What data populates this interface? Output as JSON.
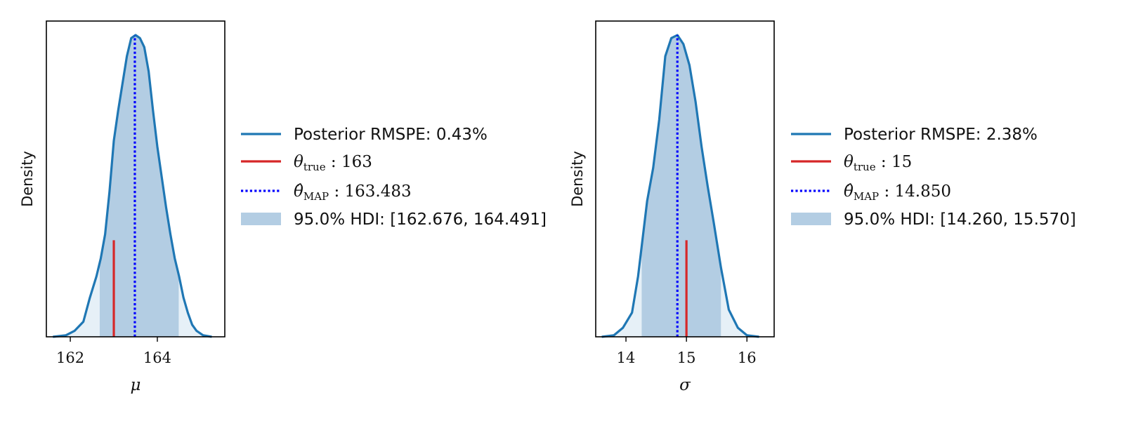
{
  "chart_data": [
    {
      "type": "area",
      "xlabel": "μ",
      "ylabel": "Density",
      "xlim": [
        161.45,
        165.55
      ],
      "xticks": [
        162,
        164
      ],
      "xtick_labels": [
        "162",
        "164"
      ],
      "density_curve": {
        "x": [
          161.6,
          161.9,
          162.1,
          162.3,
          162.45,
          162.6,
          162.7,
          162.8,
          162.9,
          163.0,
          163.1,
          163.2,
          163.3,
          163.4,
          163.5,
          163.6,
          163.7,
          163.8,
          163.9,
          164.0,
          164.1,
          164.2,
          164.3,
          164.4,
          164.5,
          164.6,
          164.7,
          164.8,
          164.9,
          165.05,
          165.25
        ],
        "y": [
          0.0,
          0.005,
          0.02,
          0.05,
          0.13,
          0.2,
          0.26,
          0.34,
          0.48,
          0.65,
          0.75,
          0.84,
          0.93,
          0.99,
          1.0,
          0.99,
          0.96,
          0.88,
          0.75,
          0.63,
          0.53,
          0.43,
          0.34,
          0.26,
          0.2,
          0.13,
          0.08,
          0.04,
          0.02,
          0.005,
          0.0
        ]
      },
      "hdi": [
        162.676,
        164.491
      ],
      "true_value": 163,
      "true_value_line_height": 0.32,
      "map_value": 163.483,
      "legend": {
        "placement": "right",
        "posterior": {
          "text": "Posterior RMSPE: 0.43%"
        },
        "true": {
          "symbol": "θ",
          "sub": "true",
          "text": " : 163"
        },
        "map": {
          "symbol": "θ̂",
          "sub": "MAP",
          "text": " : 163.483"
        },
        "hdi": {
          "text": "95.0% HDI: [162.676, 164.491]"
        }
      }
    },
    {
      "type": "area",
      "xlabel": "σ",
      "ylabel": "Density",
      "xlim": [
        13.5,
        16.45
      ],
      "xticks": [
        14,
        15,
        16
      ],
      "xtick_labels": [
        "14",
        "15",
        "16"
      ],
      "density_curve": {
        "x": [
          13.6,
          13.8,
          13.95,
          14.1,
          14.2,
          14.26,
          14.35,
          14.45,
          14.55,
          14.65,
          14.75,
          14.85,
          14.95,
          15.05,
          15.15,
          15.25,
          15.35,
          15.45,
          15.57,
          15.7,
          15.85,
          16.0,
          16.2
        ],
        "y": [
          0.0,
          0.005,
          0.03,
          0.08,
          0.2,
          0.3,
          0.45,
          0.56,
          0.72,
          0.93,
          0.99,
          1.0,
          0.97,
          0.9,
          0.78,
          0.63,
          0.5,
          0.38,
          0.23,
          0.09,
          0.03,
          0.005,
          0.0
        ]
      },
      "hdi": [
        14.26,
        15.57
      ],
      "true_value": 15,
      "true_value_line_height": 0.32,
      "map_value": 14.85,
      "legend": {
        "placement": "right",
        "posterior": {
          "text": "Posterior RMSPE: 2.38%"
        },
        "true": {
          "symbol": "θ",
          "sub": "true",
          "text": " : 15"
        },
        "map": {
          "symbol": "θ̂",
          "sub": "MAP",
          "text": " : 14.850"
        },
        "hdi": {
          "text": "95.0% HDI: [14.260, 15.570]"
        }
      }
    }
  ],
  "colors": {
    "posterior_line": "#1f77b4",
    "true_line": "#d62728",
    "map_line": "#0000ff",
    "hdi_fill": "#b3cde3",
    "tail_fill": "#e6f0f7"
  }
}
